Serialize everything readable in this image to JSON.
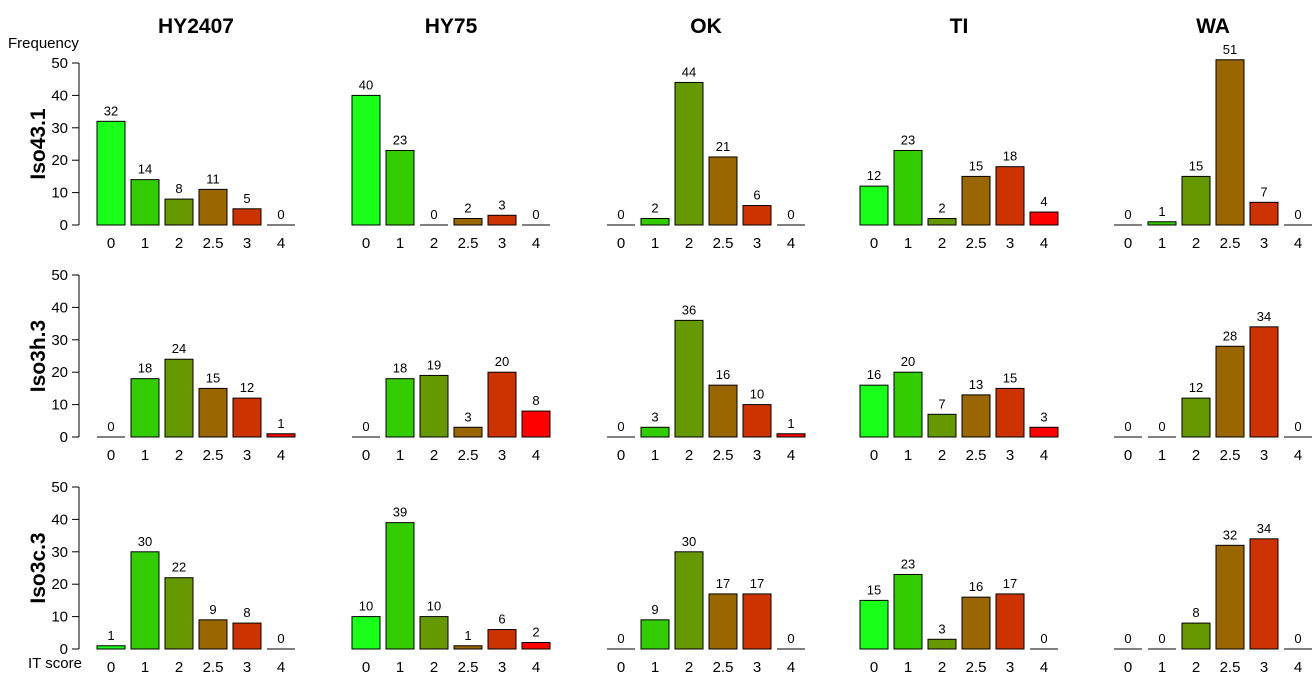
{
  "figure": {
    "y_axis_label": "Frequency",
    "x_axis_label": "IT score",
    "colors": {
      "0": "#19ff19",
      "1": "#33cc00",
      "2": "#669900",
      "2.5": "#996600",
      "3": "#cc3300",
      "4": "#ff0000"
    }
  },
  "chart_data": {
    "type": "bar",
    "layout": "grid",
    "categories": [
      "0",
      "1",
      "2",
      "2.5",
      "3",
      "4"
    ],
    "columns": [
      "HY2407",
      "HY75",
      "OK",
      "TI",
      "WA"
    ],
    "rows": [
      "Iso43.1",
      "Iso3h.3",
      "Iso3c.3"
    ],
    "xlabel": "IT score",
    "ylabel": "Frequency",
    "ylim": [
      0,
      50
    ],
    "yticks": [
      0,
      10,
      20,
      30,
      40,
      50
    ],
    "grid": false,
    "values": [
      [
        [
          32,
          14,
          8,
          11,
          5,
          0
        ],
        [
          40,
          23,
          0,
          2,
          3,
          0
        ],
        [
          0,
          2,
          44,
          21,
          6,
          0
        ],
        [
          12,
          23,
          2,
          15,
          18,
          4
        ],
        [
          0,
          1,
          15,
          51,
          7,
          0
        ]
      ],
      [
        [
          0,
          18,
          24,
          15,
          12,
          1
        ],
        [
          0,
          18,
          19,
          3,
          20,
          8
        ],
        [
          0,
          3,
          36,
          16,
          10,
          1
        ],
        [
          16,
          20,
          7,
          13,
          15,
          3
        ],
        [
          0,
          0,
          12,
          28,
          34,
          0
        ]
      ],
      [
        [
          1,
          30,
          22,
          9,
          8,
          0
        ],
        [
          10,
          39,
          10,
          1,
          6,
          2
        ],
        [
          0,
          9,
          30,
          17,
          17,
          0
        ],
        [
          15,
          23,
          3,
          16,
          17,
          0
        ],
        [
          0,
          0,
          8,
          32,
          34,
          0
        ]
      ]
    ]
  }
}
